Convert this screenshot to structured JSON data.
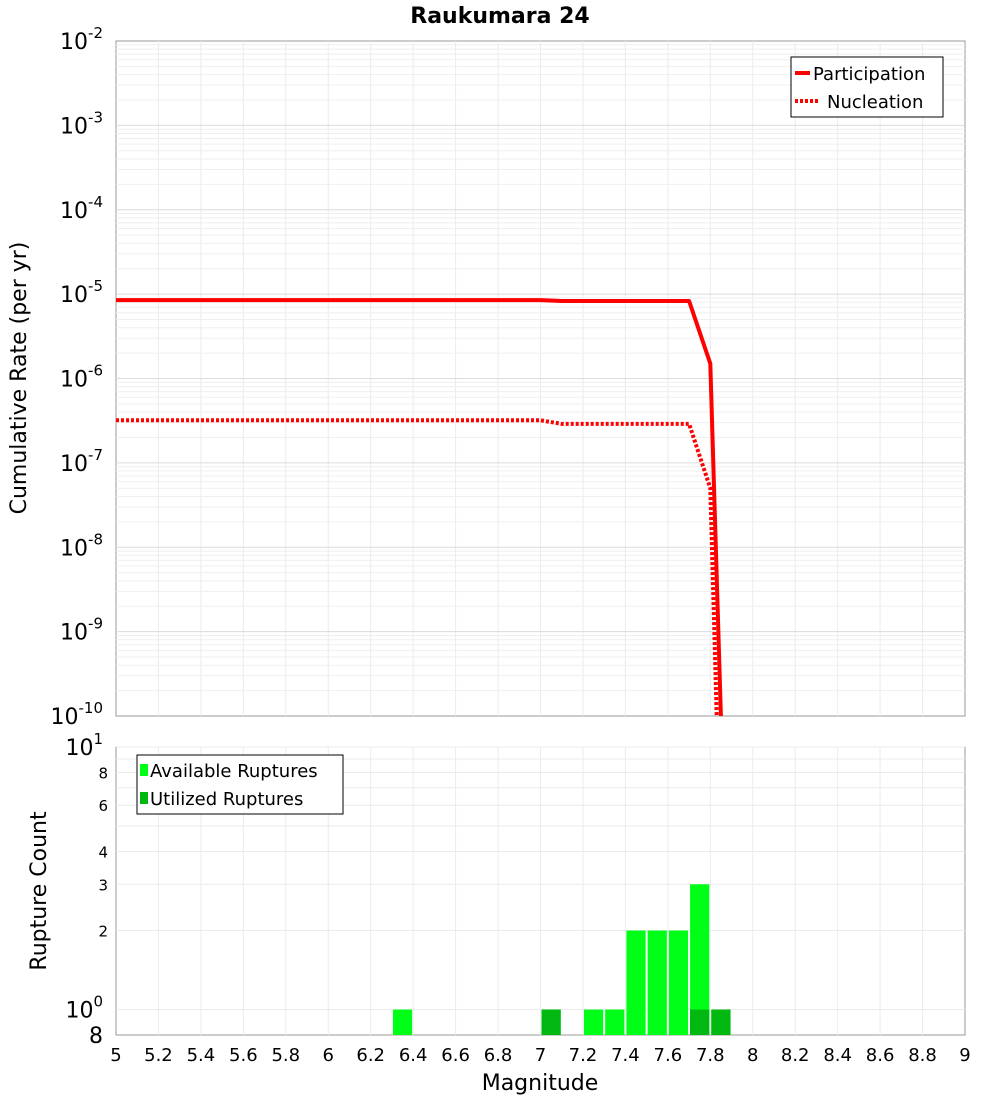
{
  "chart_data": [
    {
      "type": "line",
      "title": "Raukumara 24",
      "xlabel": "Magnitude",
      "ylabel": "Cumulative Rate (per yr)",
      "xlim": [
        5,
        9
      ],
      "ylim": [
        1e-10,
        0.01
      ],
      "yscale": "log",
      "yticks": [
        {
          "base": "10",
          "exp": "-10"
        },
        {
          "base": "10",
          "exp": "-9"
        },
        {
          "base": "10",
          "exp": "-8"
        },
        {
          "base": "10",
          "exp": "-7"
        },
        {
          "base": "10",
          "exp": "-6"
        },
        {
          "base": "10",
          "exp": "-5"
        },
        {
          "base": "10",
          "exp": "-4"
        },
        {
          "base": "10",
          "exp": "-3"
        },
        {
          "base": "10",
          "exp": "-2"
        }
      ],
      "legend_position": "top-right",
      "series": [
        {
          "name": "Participation",
          "style": "solid",
          "color": "#ff0000",
          "x": [
            5.0,
            7.0,
            7.1,
            7.7,
            7.8,
            7.85
          ],
          "y": [
            8.5e-06,
            8.5e-06,
            8.3e-06,
            8.3e-06,
            1.5e-06,
            1e-10
          ]
        },
        {
          "name": "Nucleation",
          "style": "dotted",
          "color": "#ff0000",
          "x": [
            5.0,
            7.0,
            7.1,
            7.7,
            7.8,
            7.83
          ],
          "y": [
            3.2e-07,
            3.2e-07,
            2.9e-07,
            2.9e-07,
            5e-08,
            1e-10
          ]
        }
      ]
    },
    {
      "type": "bar",
      "xlabel": "Magnitude",
      "ylabel": "Rupture Count",
      "xlim": [
        5,
        9
      ],
      "ylim": [
        0.8,
        10
      ],
      "yscale": "log",
      "bin_width": 0.1,
      "legend_position": "top-left",
      "xticks": [
        "5",
        "5.2",
        "5.4",
        "5.6",
        "5.8",
        "6",
        "6.2",
        "6.4",
        "6.6",
        "6.8",
        "7",
        "7.2",
        "7.4",
        "7.6",
        "7.8",
        "8",
        "8.2",
        "8.4",
        "8.6",
        "8.8",
        "9"
      ],
      "yticks_minor": [
        {
          "value": 2,
          "label": "2"
        },
        {
          "value": 3,
          "label": "3"
        },
        {
          "value": 4,
          "label": "4"
        },
        {
          "value": 6,
          "label": "6"
        },
        {
          "value": 8,
          "label": "8"
        }
      ],
      "yticks_major": [
        {
          "value": 0.8,
          "base": "8",
          "exp": ""
        },
        {
          "value": 1,
          "base": "10",
          "exp": "0"
        },
        {
          "value": 10,
          "base": "10",
          "exp": "1"
        }
      ],
      "series": [
        {
          "name": "Available Ruptures",
          "color": "#00ff16",
          "bins": [
            6.35,
            7.05,
            7.25,
            7.35,
            7.45,
            7.55,
            7.65,
            7.75,
            7.85
          ],
          "values": [
            1,
            1,
            1,
            1,
            2,
            2,
            2,
            3,
            1
          ]
        },
        {
          "name": "Utilized Ruptures",
          "color": "#00b80f",
          "bins": [
            7.05,
            7.75,
            7.85
          ],
          "values": [
            1,
            1,
            1
          ]
        }
      ]
    }
  ]
}
